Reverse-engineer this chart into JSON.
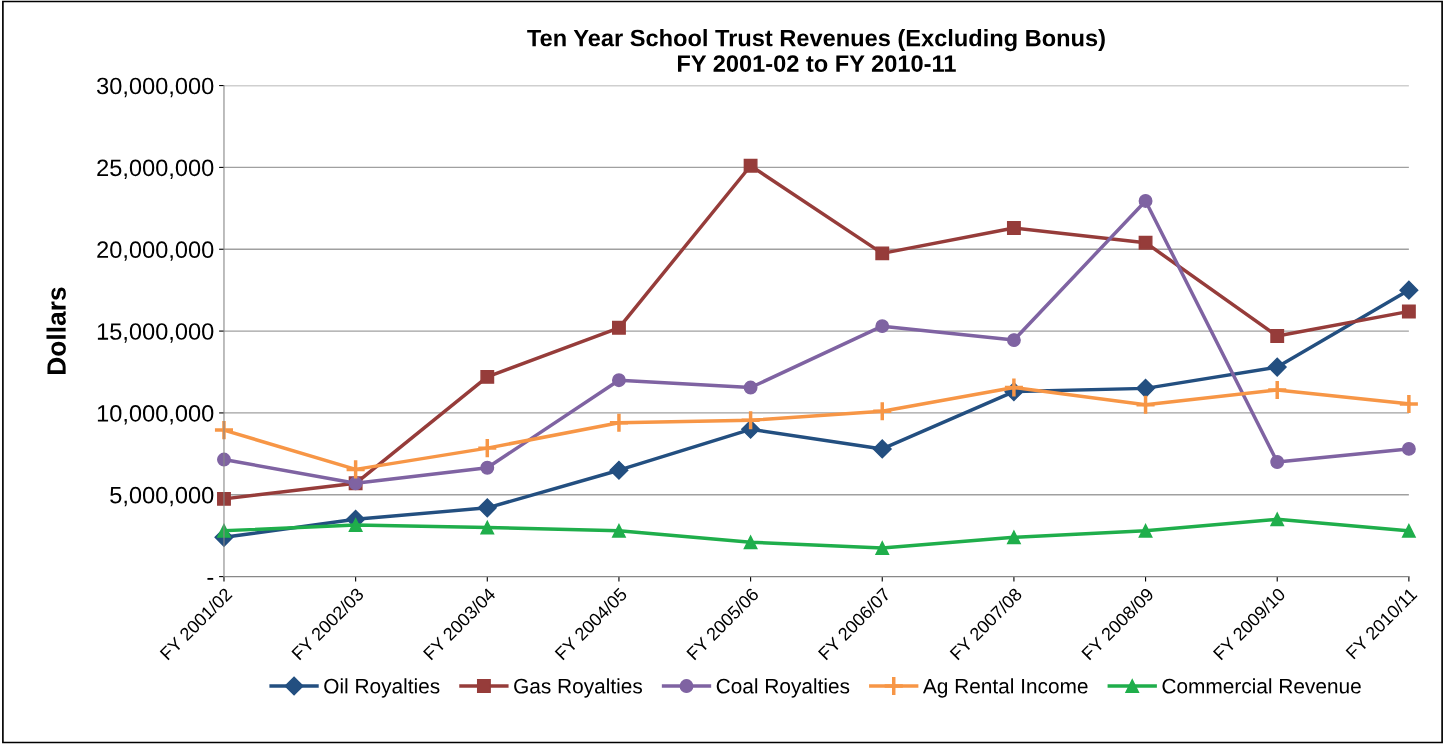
{
  "chart_data": {
    "type": "line",
    "title": "Ten Year School Trust Revenues (Excluding Bonus)\nFY 2001-02 to FY 2010-11",
    "ylabel": "Dollars",
    "categories": [
      "FY 2001/02",
      "FY 2002/03",
      "FY 2003/04",
      "FY 2004/05",
      "FY 2005/06",
      "FY 2006/07",
      "FY 2007/08",
      "FY 2008/09",
      "FY 2009/10",
      "FY 2010/11"
    ],
    "series": [
      {
        "name": "Oil Royalties",
        "color": "#234f80",
        "marker": "diamond",
        "values": [
          2400000,
          3500000,
          4200000,
          6500000,
          9000000,
          7800000,
          11300000,
          11500000,
          12800000,
          17500000
        ]
      },
      {
        "name": "Gas Royalties",
        "color": "#963c3a",
        "marker": "square",
        "values": [
          4750000,
          5700000,
          12200000,
          15200000,
          25100000,
          19750000,
          21300000,
          20400000,
          14700000,
          16200000
        ]
      },
      {
        "name": "Coal Royalties",
        "color": "#7f63a2",
        "marker": "circle",
        "values": [
          7150000,
          5700000,
          6650000,
          12000000,
          11550000,
          15300000,
          14450000,
          22950000,
          7000000,
          7800000
        ]
      },
      {
        "name": "Ag Rental Income",
        "color": "#f79646",
        "marker": "cross",
        "values": [
          8950000,
          6550000,
          7850000,
          9400000,
          9550000,
          10100000,
          11550000,
          10500000,
          11400000,
          10550000
        ]
      },
      {
        "name": "Commercial Revenue",
        "color": "#1fae4b",
        "marker": "triangle",
        "values": [
          2800000,
          3150000,
          3000000,
          2800000,
          2100000,
          1750000,
          2400000,
          2800000,
          3500000,
          2800000
        ]
      }
    ],
    "ylim": [
      0,
      30000000
    ],
    "yticks": [
      {
        "value": 0,
        "label": "-"
      },
      {
        "value": 5000000,
        "label": "5,000,000"
      },
      {
        "value": 10000000,
        "label": "10,000,000"
      },
      {
        "value": 15000000,
        "label": "15,000,000"
      },
      {
        "value": 20000000,
        "label": "20,000,000"
      },
      {
        "value": 25000000,
        "label": "25,000,000"
      },
      {
        "value": 30000000,
        "label": "30,000,000"
      }
    ],
    "grid": "y",
    "legend": "bottom",
    "line_style": "solid"
  }
}
